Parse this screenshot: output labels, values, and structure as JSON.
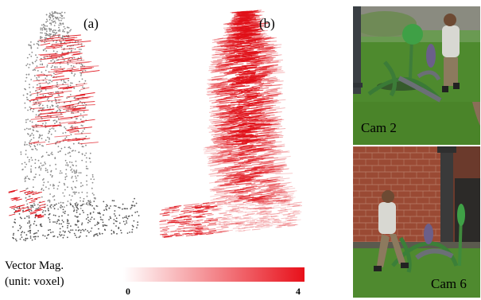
{
  "figure": {
    "panel_a_label": "(a)",
    "panel_b_label": "(b)",
    "colorbar": {
      "title_line1": "Vector Mag.",
      "title_line2": "(unit: voxel)",
      "min_label": "0",
      "max_label": "4",
      "min_value": 0,
      "max_value": 4,
      "color_low": "#ffffff",
      "color_high": "#e8101a"
    },
    "photos": [
      {
        "label": "Cam 2"
      },
      {
        "label": "Cam 6"
      }
    ],
    "colors": {
      "sparse_points": "#8a8a8a",
      "flow_red": "#e01018",
      "grass": "#4f8a2f",
      "brick": "#9a4a34",
      "sculpture": "#3e8a3a"
    }
  }
}
